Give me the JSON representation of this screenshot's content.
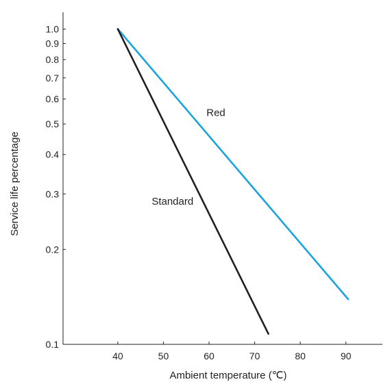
{
  "chart_data": {
    "type": "line",
    "xlabel": "Ambient temperature (℃)",
    "ylabel": "Service life percentage",
    "xlim": [
      28,
      98
    ],
    "ylim": [
      0.1,
      1.13
    ],
    "y_scale": "log",
    "grid": false,
    "x_ticks": [
      40,
      50,
      60,
      70,
      80,
      90
    ],
    "x_tick_labels": [
      "40",
      "50",
      "60",
      "70",
      "80",
      "90"
    ],
    "y_ticks": [
      0.1,
      0.2,
      0.3,
      0.4,
      0.5,
      0.6,
      0.7,
      0.8,
      0.9,
      1.0
    ],
    "y_tick_labels": [
      "0.1",
      "0.2",
      "0.3",
      "0.4",
      "0.5",
      "0.6",
      "0.7",
      "0.8",
      "0.9",
      "1.0"
    ],
    "series": [
      {
        "name": "Red",
        "color": "#1aa3e0",
        "x": [
          40,
          90.5
        ],
        "y": [
          1.0,
          0.139
        ]
      },
      {
        "name": "Standard",
        "color": "#231f20",
        "x": [
          40,
          73
        ],
        "y": [
          1.0,
          0.108
        ]
      }
    ],
    "annotations": [
      {
        "text": "Red",
        "x": 61.5,
        "y": 0.53
      },
      {
        "text": "Standard",
        "x": 52,
        "y": 0.277
      }
    ]
  }
}
